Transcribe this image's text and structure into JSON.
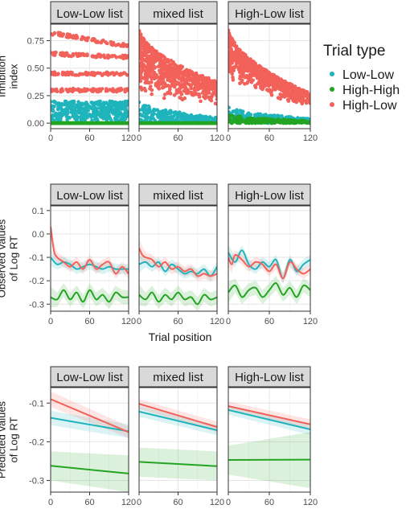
{
  "legend": {
    "title": "Trial type",
    "placement": "right",
    "items": [
      {
        "label": "Low-Low",
        "color": "#1FB4BC"
      },
      {
        "label": "High-High",
        "color": "#23A523"
      },
      {
        "label": "High-Low",
        "color": "#F2615A"
      }
    ]
  },
  "chart_data": [
    {
      "type": "scatter",
      "row": 1,
      "ylabel": "Inhibition\nindex",
      "xlabel": "",
      "xlim": [
        0,
        120
      ],
      "ylim": [
        -0.05,
        0.9
      ],
      "x_ticks": [
        0,
        60,
        120
      ],
      "y_ticks": [
        0.0,
        0.25,
        0.5,
        0.75
      ],
      "y_tick_labels": [
        "0.00",
        "0.25",
        "0.50",
        "0.75"
      ],
      "panels": [
        {
          "title": "Low-Low list",
          "series": [
            {
              "name": "Low-Low",
              "band": [
                0.02,
                0.2
              ]
            },
            {
              "name": "High-High",
              "band": [
                0.0,
                0.0
              ]
            },
            {
              "name": "High-Low",
              "start": [
                0.82,
                0.63,
                0.45,
                0.3
              ],
              "end": [
                0.7,
                0.6,
                0.45,
                0.3
              ]
            }
          ]
        },
        {
          "title": "mixed list",
          "series": [
            {
              "name": "Low-Low",
              "start": 0.2,
              "end": 0.05
            },
            {
              "name": "High-High",
              "band": [
                0.0,
                0.0
              ]
            },
            {
              "name": "High-Low",
              "start": [
                0.3,
                0.87
              ],
              "end": [
                0.15,
                0.38
              ]
            }
          ]
        },
        {
          "title": "High-Low list",
          "series": [
            {
              "name": "Low-Low",
              "start": 0.15,
              "end": 0.04
            },
            {
              "name": "High-High",
              "start": 0.08,
              "end": 0.02
            },
            {
              "name": "High-Low",
              "start": [
                0.45,
                0.88
              ],
              "end": [
                0.15,
                0.27
              ]
            }
          ]
        }
      ]
    },
    {
      "type": "line",
      "row": 2,
      "ylabel": "Observed values\nof Log RT",
      "xlabel": "Trial position",
      "xlim": [
        0,
        120
      ],
      "ylim": [
        -0.33,
        0.12
      ],
      "x_ticks": [
        0,
        60,
        120
      ],
      "y_ticks": [
        -0.3,
        -0.2,
        -0.1,
        0.0,
        0.1
      ],
      "y_tick_labels": [
        "-0.3",
        "-0.2",
        "-0.1",
        "0.0",
        "0.1"
      ],
      "panels": [
        {
          "title": "Low-Low list",
          "series": [
            {
              "name": "Low-Low",
              "x": [
                0,
                10,
                20,
                30,
                40,
                50,
                60,
                70,
                80,
                90,
                100,
                110,
                120
              ],
              "y": [
                -0.1,
                -0.13,
                -0.12,
                -0.13,
                -0.15,
                -0.14,
                -0.13,
                -0.14,
                -0.15,
                -0.14,
                -0.15,
                -0.15,
                -0.15
              ]
            },
            {
              "name": "High-High",
              "x": [
                0,
                10,
                20,
                30,
                40,
                50,
                60,
                70,
                80,
                90,
                100,
                110,
                120
              ],
              "y": [
                -0.27,
                -0.28,
                -0.24,
                -0.28,
                -0.25,
                -0.29,
                -0.24,
                -0.28,
                -0.26,
                -0.29,
                -0.25,
                -0.27,
                -0.27
              ]
            },
            {
              "name": "High-Low",
              "x": [
                0,
                5,
                10,
                20,
                30,
                40,
                50,
                60,
                70,
                80,
                90,
                100,
                110,
                120
              ],
              "y": [
                0.03,
                -0.07,
                -0.1,
                -0.12,
                -0.14,
                -0.12,
                -0.15,
                -0.11,
                -0.15,
                -0.13,
                -0.12,
                -0.17,
                -0.14,
                -0.17
              ]
            }
          ]
        },
        {
          "title": "mixed list",
          "series": [
            {
              "name": "Low-Low",
              "x": [
                0,
                10,
                20,
                30,
                40,
                50,
                60,
                70,
                80,
                90,
                100,
                110,
                120
              ],
              "y": [
                -0.13,
                -0.12,
                -0.14,
                -0.12,
                -0.16,
                -0.13,
                -0.15,
                -0.17,
                -0.16,
                -0.17,
                -0.15,
                -0.18,
                -0.14
              ]
            },
            {
              "name": "High-High",
              "x": [
                0,
                10,
                20,
                30,
                40,
                50,
                60,
                70,
                80,
                90,
                100,
                110,
                120
              ],
              "y": [
                -0.26,
                -0.28,
                -0.25,
                -0.29,
                -0.26,
                -0.28,
                -0.25,
                -0.28,
                -0.27,
                -0.3,
                -0.26,
                -0.28,
                -0.27
              ]
            },
            {
              "name": "High-Low",
              "x": [
                0,
                5,
                10,
                20,
                30,
                40,
                50,
                60,
                70,
                80,
                90,
                100,
                110,
                120
              ],
              "y": [
                -0.06,
                -0.09,
                -0.1,
                -0.11,
                -0.14,
                -0.12,
                -0.15,
                -0.14,
                -0.16,
                -0.15,
                -0.18,
                -0.17,
                -0.18,
                -0.17
              ]
            }
          ]
        },
        {
          "title": "High-Low list",
          "series": [
            {
              "name": "Low-Low",
              "x": [
                0,
                10,
                20,
                30,
                40,
                50,
                60,
                70,
                80,
                90,
                100,
                110,
                120
              ],
              "y": [
                -0.08,
                -0.12,
                -0.07,
                -0.13,
                -0.15,
                -0.12,
                -0.14,
                -0.11,
                -0.19,
                -0.11,
                -0.16,
                -0.13,
                -0.11
              ]
            },
            {
              "name": "High-High",
              "x": [
                0,
                10,
                20,
                30,
                40,
                50,
                60,
                70,
                80,
                90,
                100,
                110,
                120
              ],
              "y": [
                -0.25,
                -0.22,
                -0.27,
                -0.24,
                -0.23,
                -0.27,
                -0.24,
                -0.21,
                -0.26,
                -0.23,
                -0.27,
                -0.22,
                -0.24
              ]
            },
            {
              "name": "High-Low",
              "x": [
                0,
                5,
                10,
                20,
                30,
                40,
                50,
                60,
                70,
                80,
                90,
                100,
                110,
                120
              ],
              "y": [
                -0.1,
                -0.13,
                -0.09,
                -0.11,
                -0.14,
                -0.12,
                -0.13,
                -0.16,
                -0.13,
                -0.19,
                -0.12,
                -0.15,
                -0.17,
                -0.15
              ]
            }
          ]
        }
      ]
    },
    {
      "type": "line",
      "row": 3,
      "ylabel": "Predicted values\nof Log RT",
      "xlabel": "",
      "xlim": [
        0,
        120
      ],
      "ylim": [
        -0.33,
        -0.06
      ],
      "x_ticks": [
        0,
        60,
        120
      ],
      "y_ticks": [
        -0.3,
        -0.2,
        -0.1
      ],
      "y_tick_labels": [
        "-0.3",
        "-0.2",
        "-0.1"
      ],
      "panels": [
        {
          "title": "Low-Low list",
          "series": [
            {
              "name": "Low-Low",
              "x": [
                0,
                120
              ],
              "y": [
                -0.138,
                -0.173
              ],
              "ci": [
                [
                  -0.157,
                  -0.19
                ],
                [
                  -0.12,
                  -0.155
                ]
              ]
            },
            {
              "name": "High-High",
              "x": [
                0,
                120
              ],
              "y": [
                -0.262,
                -0.282
              ],
              "ci": [
                [
                  -0.3,
                  -0.33
                ],
                [
                  -0.225,
                  -0.235
                ]
              ]
            },
            {
              "name": "High-Low",
              "x": [
                0,
                120
              ],
              "y": [
                -0.09,
                -0.175
              ],
              "ci": [
                [
                  -0.11,
                  -0.19
                ],
                [
                  -0.07,
                  -0.16
                ]
              ]
            }
          ]
        },
        {
          "title": "mixed list",
          "series": [
            {
              "name": "Low-Low",
              "x": [
                0,
                120
              ],
              "y": [
                -0.122,
                -0.17
              ],
              "ci": [
                [
                  -0.135,
                  -0.183
                ],
                [
                  -0.108,
                  -0.157
                ]
              ]
            },
            {
              "name": "High-High",
              "x": [
                0,
                120
              ],
              "y": [
                -0.252,
                -0.263
              ],
              "ci": [
                [
                  -0.29,
                  -0.3
                ],
                [
                  -0.215,
                  -0.225
                ]
              ]
            },
            {
              "name": "High-Low",
              "x": [
                0,
                120
              ],
              "y": [
                -0.102,
                -0.162
              ],
              "ci": [
                [
                  -0.115,
                  -0.175
                ],
                [
                  -0.09,
                  -0.148
                ]
              ]
            }
          ]
        },
        {
          "title": "High-Low list",
          "series": [
            {
              "name": "Low-Low",
              "x": [
                0,
                120
              ],
              "y": [
                -0.118,
                -0.168
              ],
              "ci": [
                [
                  -0.13,
                  -0.182
                ],
                [
                  -0.105,
                  -0.155
                ]
              ]
            },
            {
              "name": "High-High",
              "x": [
                0,
                120
              ],
              "y": [
                -0.247,
                -0.246
              ],
              "ci": [
                [
                  -0.285,
                  -0.32
                ],
                [
                  -0.21,
                  -0.175
                ]
              ]
            },
            {
              "name": "High-Low",
              "x": [
                0,
                120
              ],
              "y": [
                -0.108,
                -0.155
              ],
              "ci": [
                [
                  -0.12,
                  -0.168
                ],
                [
                  -0.096,
                  -0.142
                ]
              ]
            }
          ]
        }
      ]
    }
  ]
}
